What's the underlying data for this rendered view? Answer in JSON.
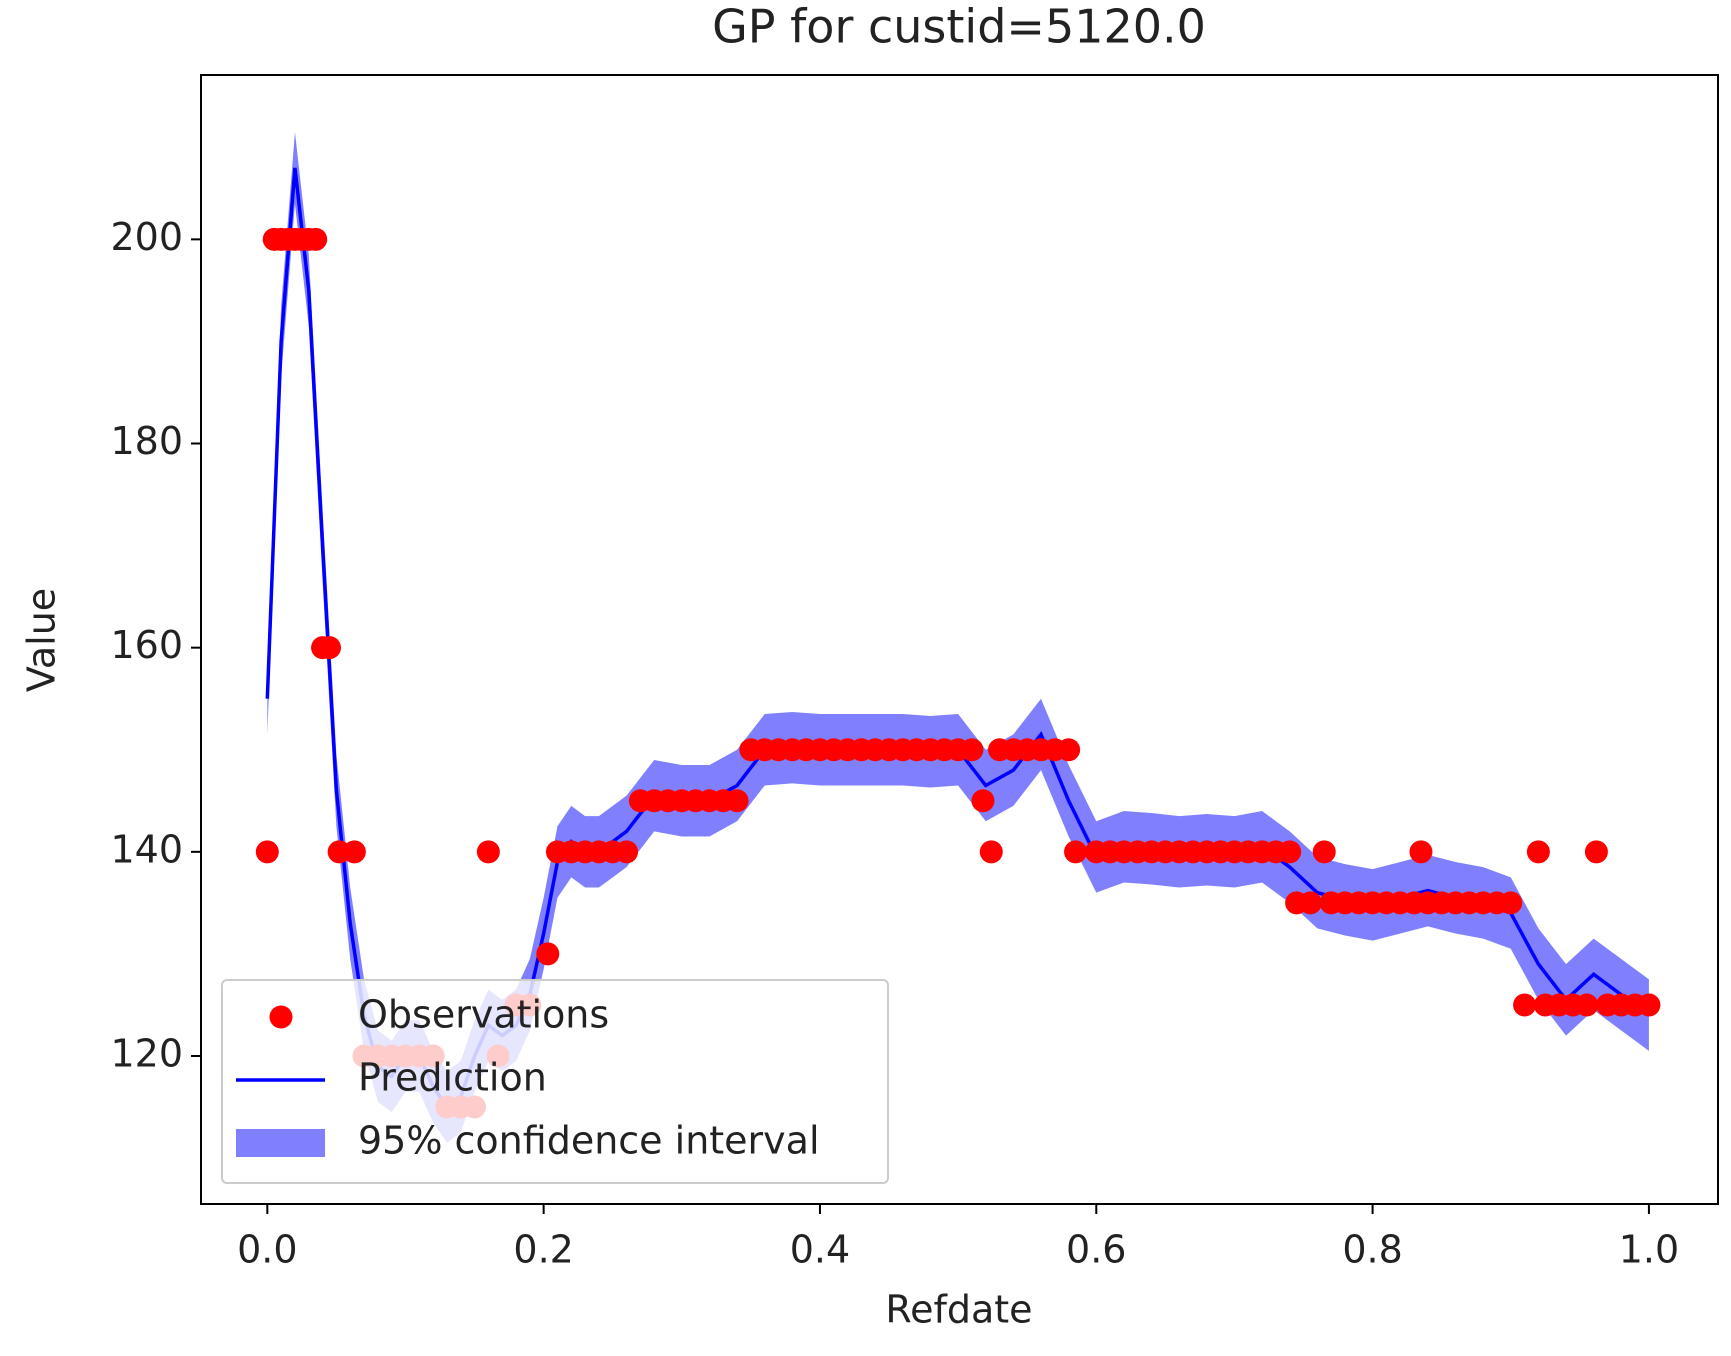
{
  "chart_data": {
    "type": "gp",
    "title": "GP for custid=5120.0",
    "x_label": "Refdate",
    "y_label": "Value",
    "xlim": [
      -0.048,
      1.05
    ],
    "ylim": [
      105.5,
      216.1
    ],
    "xticks": [
      {
        "value": 0,
        "label": "0.0"
      },
      0.2,
      0.4,
      0.6,
      0.8,
      {
        "value": 1,
        "label": "1.0"
      }
    ],
    "yticks": [
      120,
      140,
      160,
      180,
      200
    ],
    "legend": "lower left",
    "series": [
      {
        "name": "Observations",
        "kind": "scatter",
        "color": "#ff0000",
        "x": [
          0,
          0.005,
          0.01,
          0.015,
          0.02,
          0.025,
          0.03,
          0.035,
          0.04,
          0.045,
          0.052,
          0.063,
          0.07,
          0.08,
          0.09,
          0.1,
          0.11,
          0.12,
          0.13,
          0.14,
          0.15,
          0.16,
          0.167,
          0.18,
          0.19,
          0.203,
          0.21,
          0.22,
          0.23,
          0.24,
          0.25,
          0.26,
          0.27,
          0.28,
          0.29,
          0.3,
          0.31,
          0.32,
          0.33,
          0.34,
          0.35,
          0.36,
          0.37,
          0.38,
          0.39,
          0.4,
          0.41,
          0.42,
          0.43,
          0.44,
          0.45,
          0.46,
          0.47,
          0.48,
          0.49,
          0.5,
          0.51,
          0.518,
          0.524,
          0.53,
          0.54,
          0.55,
          0.56,
          0.57,
          0.58,
          0.585,
          0.6,
          0.61,
          0.62,
          0.63,
          0.64,
          0.65,
          0.66,
          0.67,
          0.68,
          0.69,
          0.7,
          0.71,
          0.72,
          0.73,
          0.74,
          0.745,
          0.755,
          0.765,
          0.77,
          0.78,
          0.79,
          0.8,
          0.81,
          0.82,
          0.83,
          0.835,
          0.84,
          0.85,
          0.86,
          0.87,
          0.88,
          0.89,
          0.9,
          0.91,
          0.92,
          0.925,
          0.935,
          0.945,
          0.955,
          0.962,
          0.97,
          0.98,
          0.99,
          1.0
        ],
        "values": [
          140,
          200,
          200,
          200,
          200,
          200,
          200,
          200,
          160,
          160,
          140,
          140,
          120,
          120,
          120,
          120,
          120,
          120,
          115,
          115,
          115,
          140,
          120,
          125,
          125,
          130,
          140,
          140,
          140,
          140,
          140,
          140,
          145,
          145,
          145,
          145,
          145,
          145,
          145,
          145,
          150,
          150,
          150,
          150,
          150,
          150,
          150,
          150,
          150,
          150,
          150,
          150,
          150,
          150,
          150,
          150,
          150,
          145,
          140,
          150,
          150,
          150,
          150,
          150,
          150,
          140,
          140,
          140,
          140,
          140,
          140,
          140,
          140,
          140,
          140,
          140,
          140,
          140,
          140,
          140,
          140,
          135,
          135,
          140,
          135,
          135,
          135,
          135,
          135,
          135,
          135,
          140,
          135,
          135,
          135,
          135,
          135,
          135,
          135,
          125,
          140,
          125,
          125,
          125,
          125,
          140,
          125,
          125,
          125,
          125
        ]
      },
      {
        "name": "Prediction",
        "kind": "line",
        "color": "#0000ff",
        "x": [
          0,
          0.01,
          0.02,
          0.03,
          0.04,
          0.05,
          0.06,
          0.07,
          0.08,
          0.09,
          0.1,
          0.11,
          0.12,
          0.13,
          0.14,
          0.15,
          0.16,
          0.17,
          0.18,
          0.19,
          0.2,
          0.21,
          0.22,
          0.23,
          0.24,
          0.25,
          0.26,
          0.28,
          0.3,
          0.32,
          0.34,
          0.36,
          0.38,
          0.4,
          0.42,
          0.44,
          0.46,
          0.48,
          0.5,
          0.52,
          0.54,
          0.56,
          0.58,
          0.6,
          0.62,
          0.64,
          0.66,
          0.68,
          0.7,
          0.72,
          0.74,
          0.76,
          0.78,
          0.8,
          0.82,
          0.84,
          0.86,
          0.88,
          0.9,
          0.92,
          0.94,
          0.96,
          0.98,
          1.0
        ],
        "values": [
          155,
          190,
          207,
          195,
          170,
          146,
          133,
          124,
          119,
          118,
          120,
          120,
          117,
          115,
          116,
          120,
          123,
          122,
          123,
          126,
          132,
          139,
          141,
          140,
          140,
          141,
          142,
          145.5,
          145,
          145,
          146.5,
          150,
          150.2,
          150,
          150,
          150,
          150,
          149.8,
          150,
          146.5,
          148,
          151.5,
          145,
          139.5,
          140.5,
          140.3,
          140,
          140.2,
          140,
          140.5,
          138.5,
          136,
          135.3,
          134.8,
          135.5,
          136.2,
          135.5,
          135,
          134,
          129,
          125.5,
          128,
          126,
          124
        ]
      },
      {
        "name": "95% confidence interval",
        "kind": "band",
        "color": "#8080ff",
        "x": [
          0,
          0.01,
          0.02,
          0.03,
          0.04,
          0.05,
          0.06,
          0.07,
          0.08,
          0.09,
          0.1,
          0.11,
          0.12,
          0.13,
          0.14,
          0.15,
          0.16,
          0.17,
          0.18,
          0.19,
          0.2,
          0.21,
          0.22,
          0.23,
          0.24,
          0.25,
          0.26,
          0.28,
          0.3,
          0.32,
          0.34,
          0.36,
          0.38,
          0.4,
          0.42,
          0.44,
          0.46,
          0.48,
          0.5,
          0.52,
          0.54,
          0.56,
          0.58,
          0.6,
          0.62,
          0.64,
          0.66,
          0.68,
          0.7,
          0.72,
          0.74,
          0.76,
          0.78,
          0.8,
          0.82,
          0.84,
          0.86,
          0.88,
          0.9,
          0.92,
          0.94,
          0.96,
          0.98,
          1.0
        ],
        "lower": [
          151.5,
          186.5,
          203.5,
          191.5,
          166.5,
          142.5,
          129.5,
          120.5,
          115.5,
          114.5,
          116.5,
          116.5,
          113.5,
          111.5,
          112.5,
          116.5,
          119.5,
          118.5,
          119.5,
          122.5,
          128.5,
          135.5,
          137.5,
          136.5,
          136.5,
          137.5,
          138.5,
          142,
          141.5,
          141.5,
          143,
          146.5,
          146.7,
          146.5,
          146.5,
          146.5,
          146.5,
          146.3,
          146.5,
          143,
          144.5,
          148,
          141.5,
          136,
          137,
          136.8,
          136.5,
          136.7,
          136.5,
          137,
          135,
          132.5,
          131.8,
          131.3,
          132,
          132.7,
          132,
          131.5,
          130.5,
          125.5,
          122,
          124.5,
          122.5,
          120.5
        ],
        "upper": [
          158.5,
          193.5,
          210.5,
          198.5,
          173.5,
          149.5,
          136.5,
          127.5,
          122.5,
          121.5,
          123.5,
          123.5,
          120.5,
          118.5,
          119.5,
          123.5,
          126.5,
          125.5,
          126.5,
          129.5,
          135.5,
          142.5,
          144.5,
          143.5,
          143.5,
          144.5,
          145.5,
          149,
          148.5,
          148.5,
          150,
          153.5,
          153.7,
          153.5,
          153.5,
          153.5,
          153.5,
          153.3,
          153.5,
          150,
          151.5,
          155,
          148.5,
          143,
          144,
          143.8,
          143.5,
          143.7,
          143.5,
          144,
          142,
          139.5,
          138.8,
          138.3,
          139,
          139.7,
          139,
          138.5,
          137.5,
          132.5,
          129,
          131.5,
          129.5,
          127.5
        ]
      }
    ]
  }
}
